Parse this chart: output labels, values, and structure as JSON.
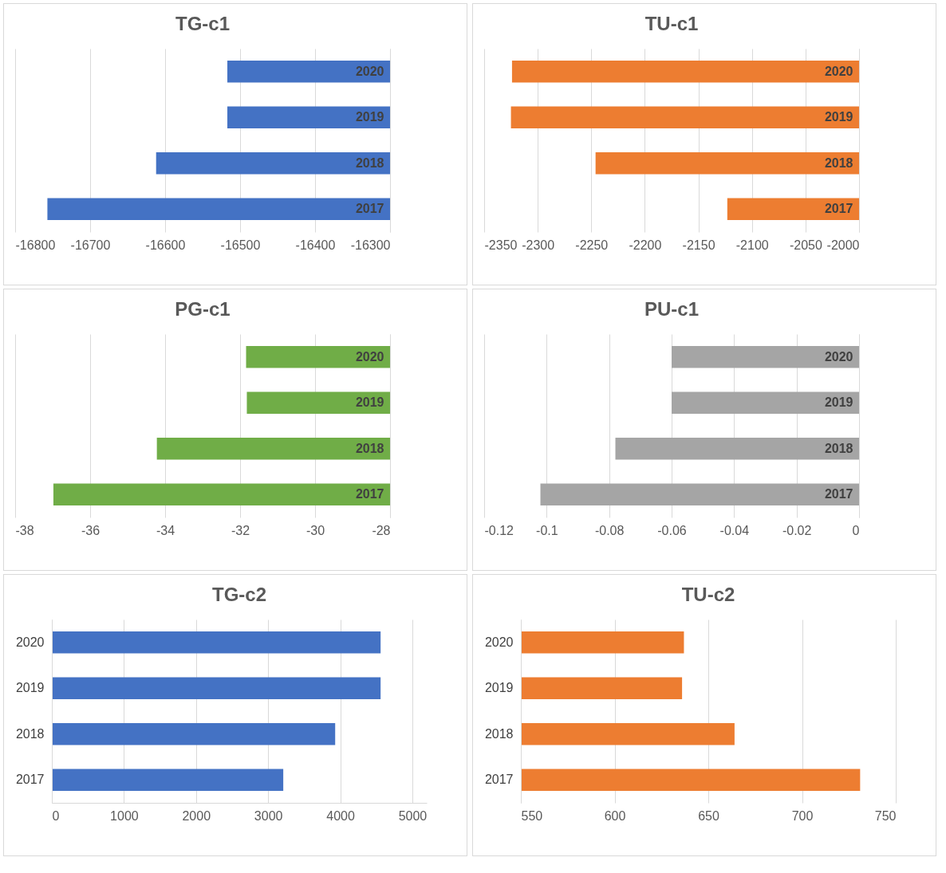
{
  "chart_data": [
    {
      "type": "bar",
      "orientation": "horizontal",
      "title": "TG-c1",
      "categories": [
        "2020",
        "2019",
        "2018",
        "2017"
      ],
      "series": [
        {
          "color": "#4472c4",
          "values": [
            -16517,
            -16517,
            -16612,
            -16757
          ]
        }
      ],
      "xlim": [
        -16800,
        -16300
      ],
      "xticks": [
        -16800,
        -16700,
        -16600,
        -16500,
        -16400,
        -16300
      ],
      "grid": "x"
    },
    {
      "type": "bar",
      "orientation": "horizontal",
      "title": "TU-c1",
      "categories": [
        "2020",
        "2019",
        "2018",
        "2017"
      ],
      "series": [
        {
          "color": "#ed7d31",
          "values": [
            -2324,
            -2325,
            -2246,
            -2123
          ]
        }
      ],
      "xlim": [
        -2350,
        -2000
      ],
      "xticks": [
        -2350,
        -2300,
        -2250,
        -2200,
        -2150,
        -2100,
        -2050,
        -2000
      ],
      "grid": "x"
    },
    {
      "type": "bar",
      "orientation": "horizontal",
      "title": "PG-c1",
      "categories": [
        "2020",
        "2019",
        "2018",
        "2017"
      ],
      "series": [
        {
          "color": "#70ad47",
          "values": [
            -31.84,
            -31.82,
            -34.22,
            -36.98
          ]
        }
      ],
      "xlim": [
        -38,
        -28
      ],
      "xticks": [
        -38,
        -36,
        -34,
        -32,
        -30,
        -28
      ],
      "grid": "x"
    },
    {
      "type": "bar",
      "orientation": "horizontal",
      "title": "PU-c1",
      "categories": [
        "2020",
        "2019",
        "2018",
        "2017"
      ],
      "series": [
        {
          "color": "#a5a5a5",
          "values": [
            -0.06,
            -0.06,
            -0.078,
            -0.102
          ]
        }
      ],
      "xlim": [
        -0.12,
        0
      ],
      "xticks": [
        -0.12,
        -0.1,
        -0.08,
        -0.06,
        -0.04,
        -0.02,
        0
      ],
      "grid": "x"
    },
    {
      "type": "bar",
      "orientation": "horizontal",
      "title": "TG-c2",
      "categories": [
        "2020",
        "2019",
        "2018",
        "2017"
      ],
      "series": [
        {
          "color": "#4472c4",
          "values": [
            4560,
            4560,
            3930,
            3210
          ]
        }
      ],
      "xlim": [
        0,
        5200
      ],
      "xticks": [
        0,
        1000,
        2000,
        3000,
        4000,
        5000
      ],
      "grid": "x"
    },
    {
      "type": "bar",
      "orientation": "horizontal",
      "title": "TU-c2",
      "categories": [
        "2020",
        "2019",
        "2018",
        "2017"
      ],
      "series": [
        {
          "color": "#ed7d31",
          "values": [
            637,
            636,
            664,
            731
          ]
        }
      ],
      "xlim": [
        550,
        750
      ],
      "xticks": [
        550,
        600,
        650,
        700,
        750
      ],
      "grid": "x"
    }
  ]
}
